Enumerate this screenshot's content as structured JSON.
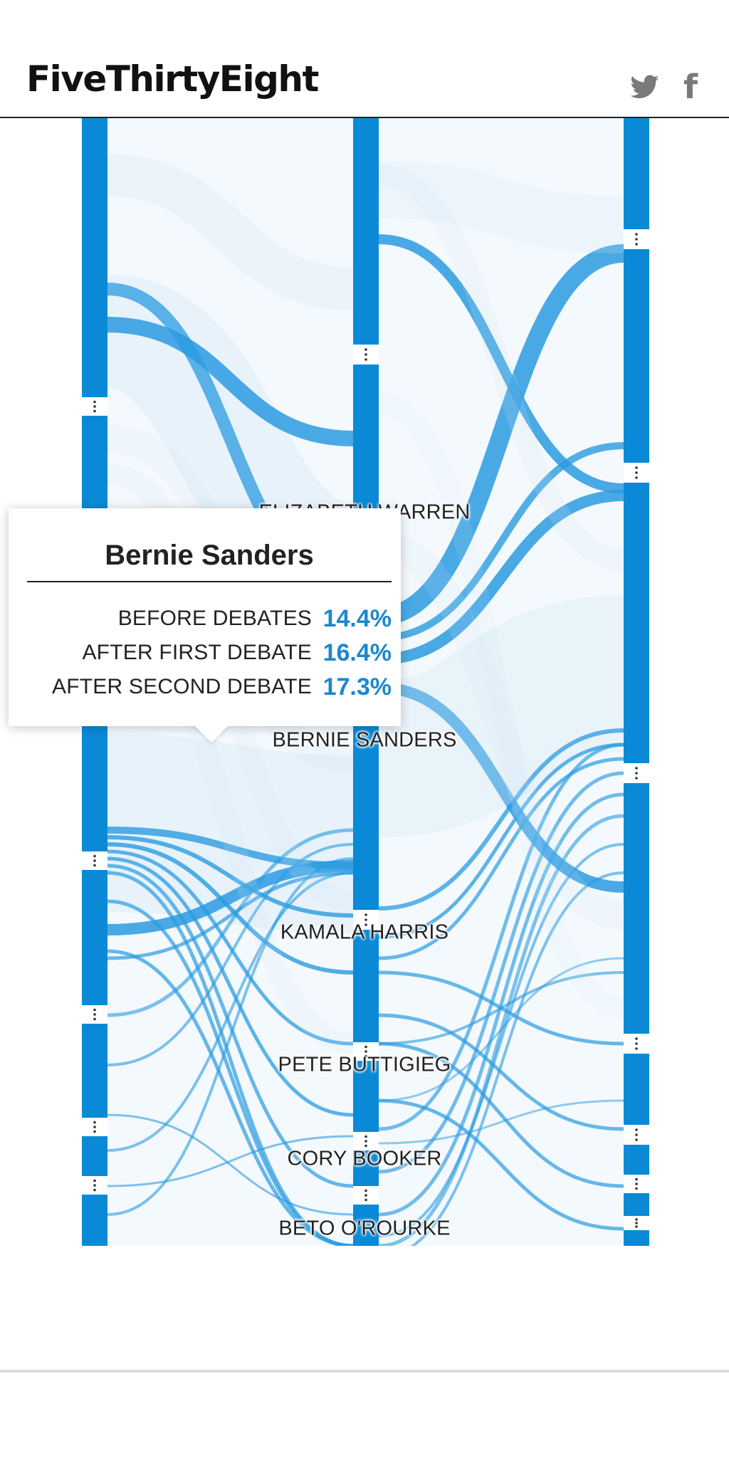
{
  "header": {
    "logo": "FiveThirtyEight",
    "social": [
      "twitter-icon",
      "facebook-icon"
    ]
  },
  "colors": {
    "node": "#0a8ad6",
    "flow": "#2a9be0",
    "flow_light": "#cfe6f6",
    "panel": "#f4f9fd",
    "value": "#1b87cf",
    "icon": "#7a7a7a"
  },
  "chart_labels": [
    "ELIZABETH WARREN",
    "BERNIE SANDERS",
    "KAMALA HARRIS",
    "PETE BUTTIGIEG",
    "CORY BOOKER",
    "BETO O'ROURKE"
  ],
  "tooltip": {
    "title": "Bernie Sanders",
    "rows": [
      {
        "label": "BEFORE DEBATES",
        "value": "14.4%"
      },
      {
        "label": "AFTER FIRST DEBATE",
        "value": "16.4%"
      },
      {
        "label": "AFTER SECOND DEBATE",
        "value": "17.3%"
      }
    ]
  }
}
